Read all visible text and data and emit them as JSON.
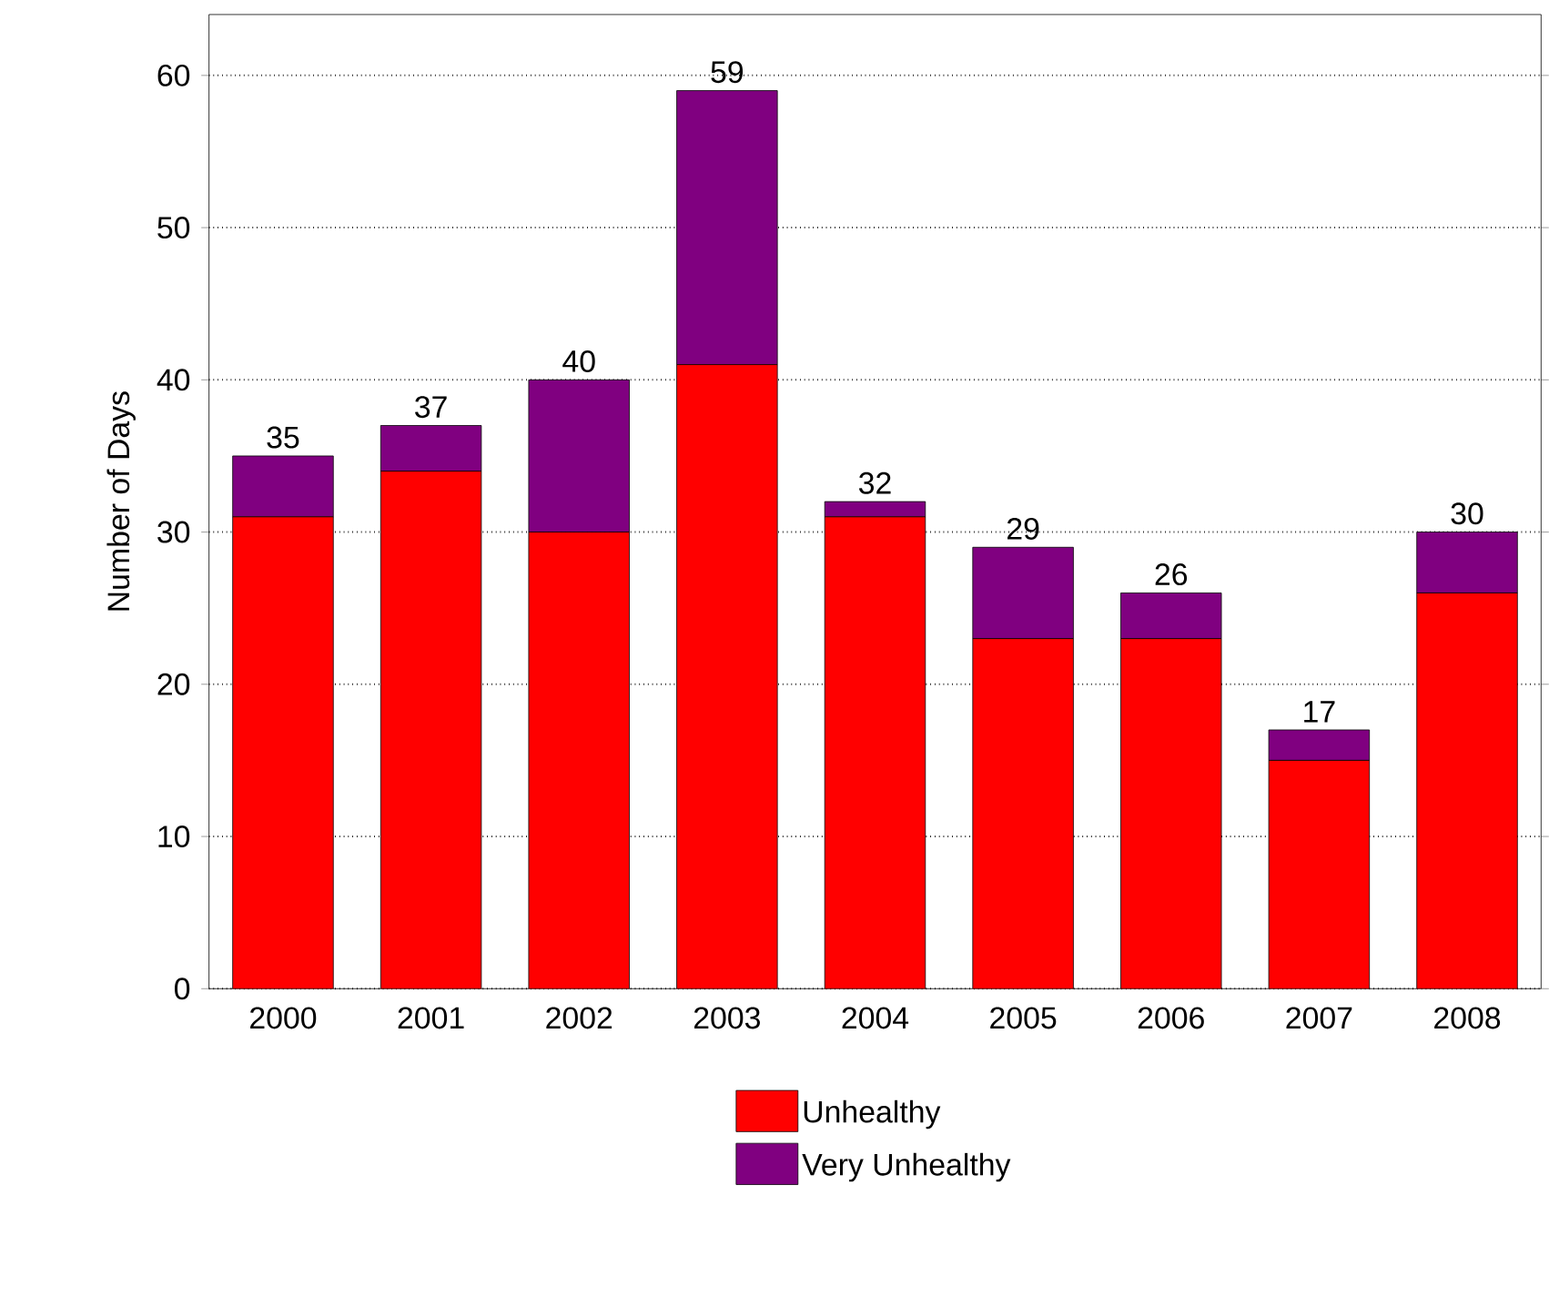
{
  "chart_data": {
    "type": "bar",
    "stacked": true,
    "ylabel": "Number of Days",
    "categories": [
      "2000",
      "2001",
      "2002",
      "2003",
      "2004",
      "2005",
      "2006",
      "2007",
      "2008"
    ],
    "series": [
      {
        "name": "Unhealthy",
        "color": "#ff0000",
        "values": [
          31,
          34,
          30,
          41,
          31,
          23,
          23,
          15,
          26
        ]
      },
      {
        "name": "Very Unhealthy",
        "color": "#800080",
        "values": [
          4,
          3,
          10,
          18,
          1,
          6,
          3,
          2,
          4
        ]
      }
    ],
    "totals": [
      "35",
      "37",
      "40",
      "59",
      "32",
      "29",
      "26",
      "17",
      "30"
    ],
    "ylim": [
      0,
      64
    ],
    "yticks": [
      0,
      10,
      20,
      30,
      40,
      50,
      60
    ],
    "grid": "y",
    "legend": "bottom"
  }
}
